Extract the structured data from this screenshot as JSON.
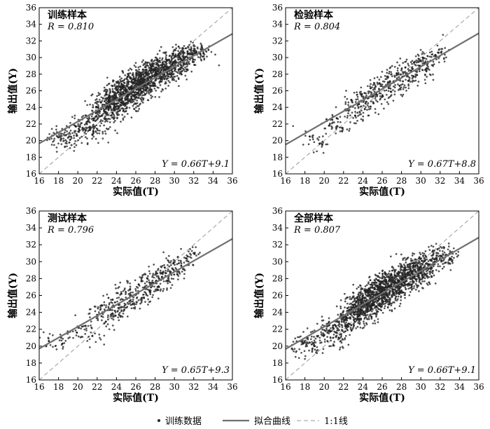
{
  "chart_data": [
    {
      "type": "scatter",
      "panel_label": "训练样本",
      "r_label": "R = 0.810",
      "equation": "Y = 0.66T+9.1",
      "xlabel": "实际值(T)",
      "ylabel": "输出值(Y)",
      "xlim": [
        16,
        36
      ],
      "ylim": [
        16,
        36
      ],
      "xticks": [
        16,
        18,
        20,
        22,
        24,
        26,
        28,
        30,
        32,
        34,
        36
      ],
      "yticks": [
        16,
        18,
        20,
        22,
        24,
        26,
        28,
        30,
        32,
        34,
        36
      ],
      "fit": {
        "slope": 0.66,
        "intercept": 9.1
      },
      "one_to_one": true,
      "series": [
        {
          "values": [
            [
              18.0,
              20.4
            ],
            [
              19.2,
              20.1
            ],
            [
              20.1,
              21.4
            ],
            [
              21.0,
              22.3
            ],
            [
              21.6,
              21.1
            ],
            [
              22.0,
              23.5
            ],
            [
              22.4,
              24.6
            ],
            [
              22.8,
              22.6
            ],
            [
              23.1,
              24.1
            ],
            [
              23.3,
              25.4
            ],
            [
              23.6,
              23.3
            ],
            [
              23.8,
              24.8
            ],
            [
              24.0,
              26.1
            ],
            [
              24.2,
              23.9
            ],
            [
              24.4,
              25.2
            ],
            [
              24.6,
              26.5
            ],
            [
              24.8,
              24.4
            ],
            [
              25.0,
              25.9
            ],
            [
              25.2,
              27.0
            ],
            [
              25.4,
              24.8
            ],
            [
              25.6,
              26.3
            ],
            [
              25.8,
              27.4
            ],
            [
              26.0,
              25.5
            ],
            [
              26.2,
              26.8
            ],
            [
              26.4,
              27.9
            ],
            [
              26.6,
              25.9
            ],
            [
              26.8,
              27.1
            ],
            [
              27.0,
              28.2
            ],
            [
              27.2,
              26.4
            ],
            [
              27.4,
              27.6
            ],
            [
              27.6,
              28.7
            ],
            [
              27.8,
              26.9
            ],
            [
              28.0,
              28.0
            ],
            [
              28.3,
              29.1
            ],
            [
              28.6,
              27.4
            ],
            [
              28.9,
              28.5
            ],
            [
              29.2,
              29.6
            ],
            [
              29.5,
              28.0
            ],
            [
              29.8,
              29.2
            ],
            [
              30.1,
              30.2
            ],
            [
              30.5,
              28.6
            ],
            [
              30.9,
              29.7
            ],
            [
              31.4,
              30.4
            ],
            [
              32.0,
              30.8
            ],
            [
              33.0,
              30.5
            ]
          ]
        }
      ]
    },
    {
      "type": "scatter",
      "panel_label": "检验样本",
      "r_label": "R = 0.804",
      "equation": "Y = 0.67T+8.8",
      "xlabel": "实际值(T)",
      "ylabel": "输出值(Y)",
      "xlim": [
        16,
        36
      ],
      "ylim": [
        16,
        36
      ],
      "xticks": [
        16,
        18,
        20,
        22,
        24,
        26,
        28,
        30,
        32,
        34,
        36
      ],
      "yticks": [
        16,
        18,
        20,
        22,
        24,
        26,
        28,
        30,
        32,
        34,
        36
      ],
      "fit": {
        "slope": 0.67,
        "intercept": 8.8
      },
      "one_to_one": true,
      "series": [
        {
          "values": [
            [
              18.5,
              20.5
            ],
            [
              19.8,
              19.5
            ],
            [
              20.5,
              21.8
            ],
            [
              21.3,
              22.7
            ],
            [
              21.9,
              21.5
            ],
            [
              22.4,
              23.8
            ],
            [
              22.8,
              24.9
            ],
            [
              23.2,
              23.0
            ],
            [
              23.6,
              24.4
            ],
            [
              23.9,
              25.6
            ],
            [
              24.2,
              23.8
            ],
            [
              24.5,
              25.1
            ],
            [
              24.8,
              26.3
            ],
            [
              25.1,
              24.5
            ],
            [
              25.4,
              25.8
            ],
            [
              25.7,
              26.9
            ],
            [
              26.0,
              25.3
            ],
            [
              26.3,
              26.5
            ],
            [
              26.6,
              27.6
            ],
            [
              26.9,
              25.9
            ],
            [
              27.2,
              27.0
            ],
            [
              27.5,
              28.1
            ],
            [
              27.8,
              26.6
            ],
            [
              28.1,
              27.7
            ],
            [
              28.4,
              28.8
            ],
            [
              28.7,
              27.2
            ],
            [
              29.0,
              28.4
            ],
            [
              29.3,
              29.4
            ],
            [
              29.6,
              27.9
            ],
            [
              29.9,
              29.0
            ],
            [
              30.2,
              30.0
            ],
            [
              30.6,
              28.7
            ],
            [
              31.0,
              29.6
            ],
            [
              31.5,
              30.3
            ],
            [
              32.1,
              30.6
            ]
          ]
        }
      ]
    },
    {
      "type": "scatter",
      "panel_label": "测试样本",
      "r_label": "R = 0.796",
      "equation": "Y = 0.65T+9.3",
      "xlabel": "实际值(T)",
      "ylabel": "输出值(Y)",
      "xlim": [
        16,
        36
      ],
      "ylim": [
        16,
        36
      ],
      "xticks": [
        16,
        18,
        20,
        22,
        24,
        26,
        28,
        30,
        32,
        34,
        36
      ],
      "yticks": [
        16,
        18,
        20,
        22,
        24,
        26,
        28,
        30,
        32,
        34,
        36
      ],
      "fit": {
        "slope": 0.65,
        "intercept": 9.3
      },
      "one_to_one": true,
      "series": [
        {
          "values": [
            [
              17.0,
              20.6
            ],
            [
              18.4,
              20.3
            ],
            [
              19.9,
              21.6
            ],
            [
              20.8,
              22.4
            ],
            [
              21.5,
              21.2
            ],
            [
              22.0,
              23.7
            ],
            [
              22.5,
              24.8
            ],
            [
              22.9,
              22.9
            ],
            [
              23.3,
              24.3
            ],
            [
              23.6,
              25.5
            ],
            [
              23.9,
              23.6
            ],
            [
              24.2,
              24.9
            ],
            [
              24.5,
              26.2
            ],
            [
              24.8,
              24.3
            ],
            [
              25.1,
              25.6
            ],
            [
              25.4,
              26.7
            ],
            [
              25.7,
              25.0
            ],
            [
              26.0,
              26.1
            ],
            [
              26.3,
              27.3
            ],
            [
              26.6,
              25.7
            ],
            [
              26.9,
              26.9
            ],
            [
              27.2,
              28.0
            ],
            [
              27.5,
              26.4
            ],
            [
              27.8,
              27.5
            ],
            [
              28.1,
              28.6
            ],
            [
              28.4,
              27.0
            ],
            [
              28.7,
              28.2
            ],
            [
              29.0,
              29.3
            ],
            [
              29.3,
              27.7
            ],
            [
              29.6,
              28.8
            ],
            [
              29.9,
              29.8
            ],
            [
              30.3,
              28.5
            ],
            [
              30.7,
              29.5
            ],
            [
              31.2,
              30.4
            ],
            [
              32.0,
              31.0
            ]
          ]
        }
      ]
    },
    {
      "type": "scatter",
      "panel_label": "全部样本",
      "r_label": "R = 0.807",
      "equation": "Y = 0.66T+9.1",
      "xlabel": "实际值(T)",
      "ylabel": "输出值(Y)",
      "xlim": [
        16,
        36
      ],
      "ylim": [
        16,
        36
      ],
      "xticks": [
        16,
        18,
        20,
        22,
        24,
        26,
        28,
        30,
        32,
        34,
        36
      ],
      "yticks": [
        16,
        18,
        20,
        22,
        24,
        26,
        28,
        30,
        32,
        34,
        36
      ],
      "fit": {
        "slope": 0.66,
        "intercept": 9.1
      },
      "one_to_one": true,
      "series": [
        {
          "values": [
            [
              17.8,
              20.3
            ],
            [
              19.0,
              20.0
            ],
            [
              20.0,
              21.3
            ],
            [
              20.9,
              22.2
            ],
            [
              21.5,
              21.0
            ],
            [
              22.0,
              23.4
            ],
            [
              22.4,
              24.5
            ],
            [
              22.8,
              22.5
            ],
            [
              23.1,
              24.0
            ],
            [
              23.3,
              25.3
            ],
            [
              23.6,
              23.2
            ],
            [
              23.8,
              24.7
            ],
            [
              24.0,
              26.0
            ],
            [
              24.2,
              23.8
            ],
            [
              24.4,
              25.1
            ],
            [
              24.6,
              26.4
            ],
            [
              24.8,
              24.3
            ],
            [
              25.0,
              25.8
            ],
            [
              25.2,
              26.9
            ],
            [
              25.4,
              24.7
            ],
            [
              25.6,
              26.2
            ],
            [
              25.8,
              27.3
            ],
            [
              26.0,
              25.4
            ],
            [
              26.2,
              26.7
            ],
            [
              26.4,
              27.8
            ],
            [
              26.6,
              25.8
            ],
            [
              26.8,
              27.0
            ],
            [
              27.0,
              28.1
            ],
            [
              27.2,
              26.3
            ],
            [
              27.4,
              27.5
            ],
            [
              27.6,
              28.6
            ],
            [
              27.8,
              26.8
            ],
            [
              28.0,
              27.9
            ],
            [
              28.3,
              29.0
            ],
            [
              28.6,
              27.3
            ],
            [
              28.9,
              28.4
            ],
            [
              29.2,
              29.5
            ],
            [
              29.5,
              27.9
            ],
            [
              29.8,
              29.1
            ],
            [
              30.1,
              30.1
            ],
            [
              30.5,
              28.5
            ],
            [
              30.9,
              29.6
            ],
            [
              31.4,
              30.3
            ],
            [
              32.0,
              30.7
            ],
            [
              33.0,
              30.4
            ]
          ]
        }
      ]
    }
  ],
  "legend": {
    "points_label": "训练数据",
    "fit_label": "拟合曲线",
    "ratio_label": "1:1线"
  },
  "colors": {
    "points": "#222222",
    "fit": "#707070",
    "ratio": "#9a9a9a"
  }
}
